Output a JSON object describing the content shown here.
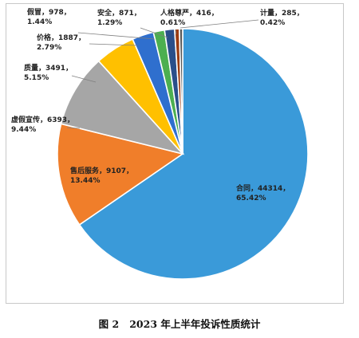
{
  "chart_data": {
    "type": "pie",
    "slices": [
      {
        "name": "合同",
        "value": 44314,
        "percent": "65.42%",
        "color": "#3a9ad9"
      },
      {
        "name": "售后服务",
        "value": 9107,
        "percent": "13.44%",
        "color": "#f07e2a"
      },
      {
        "name": "虚假宣传",
        "value": 6393,
        "percent": "9.44%",
        "color": "#a6a6a6"
      },
      {
        "name": "质量",
        "value": 3491,
        "percent": "5.15%",
        "color": "#ffc000"
      },
      {
        "name": "价格",
        "value": 1887,
        "percent": "2.79%",
        "color": "#2f6fce"
      },
      {
        "name": "假冒",
        "value": 978,
        "percent": "1.44%",
        "color": "#4caf50"
      },
      {
        "name": "安全",
        "value": 871,
        "percent": "1.29%",
        "color": "#2a4e8a"
      },
      {
        "name": "人格尊严",
        "value": 416,
        "percent": "0.61%",
        "color": "#9c3a10"
      },
      {
        "name": "计量",
        "value": 285,
        "percent": "0.42%",
        "color": "#5a5a5a"
      }
    ],
    "start_angle_deg": 0,
    "direction": "clockwise"
  },
  "caption": {
    "figure_label": "图 2",
    "title": "2023 年上半年投诉性质统计"
  }
}
